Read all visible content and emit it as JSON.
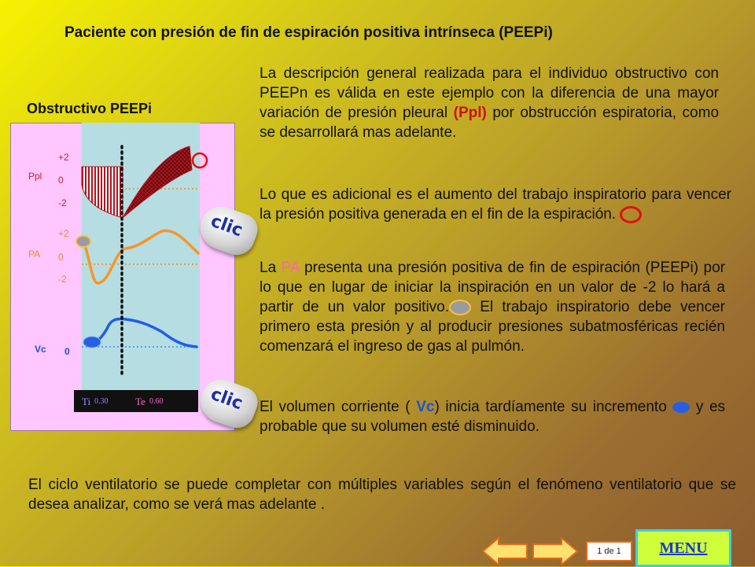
{
  "title": "Paciente con presión de fin de espiración positiva intrínseca (PEEPi)",
  "subtitle": "Obstructivo PEEPi",
  "para1": {
    "before": "La descripción general realizada para el individuo obstructivo con PEEPn es válida en este ejemplo con la diferencia de una mayor variación de presión pleural ",
    "highlight": "(Ppl)",
    "after": " por obstrucción espiratoria, como se desarrollará mas adelante."
  },
  "para2": "Lo que es adicional es el aumento del trabajo inspiratorio para vencer la presión positiva generada en el fin  de la espiración.",
  "para3": {
    "start": "La ",
    "highlight": "PA",
    "middle": " presenta una presión positiva de fin de espiración (PEEPi) por lo que en lugar de iniciar la inspiración en un valor de -2 lo hará a partir de un valor positivo.",
    "end": " El trabajo inspiratorio debe vencer primero esta presión y al producir presiones subatmosféricas recién comenzará el ingreso de gas al pulmón."
  },
  "para4": {
    "start": "El volumen corriente ( ",
    "highlight": "Vc",
    "middle": ") inicia tardíamente su incremento",
    "end": " y es probable que su volumen esté disminuido."
  },
  "para5": "El ciclo ventilatorio se puede completar con múltiples variables según el fenómeno ventilatorio que se desea analizar, como se verá mas adelante .",
  "chart": {
    "ppl_label": "Ppl",
    "ppl_ticks": [
      "+2",
      "0",
      "-2"
    ],
    "pa_label": "PA",
    "pa_ticks": [
      "+2",
      "0",
      "-2"
    ],
    "vc_label": "Vc",
    "vc_tick": "0",
    "ti_label": "Ti",
    "ti_value": "0.30",
    "te_label": "Te",
    "te_value": "0.60"
  },
  "clic_label": "clic",
  "nav": {
    "page_count": "1 de 1",
    "menu_label": "MENU"
  },
  "colors": {
    "ppl_fill": "#b0141e",
    "pa_curve": "#f5962a",
    "vc_curve": "#1f5cf0",
    "highlight_red": "#cc1010",
    "highlight_pink": "#ff66aa"
  }
}
